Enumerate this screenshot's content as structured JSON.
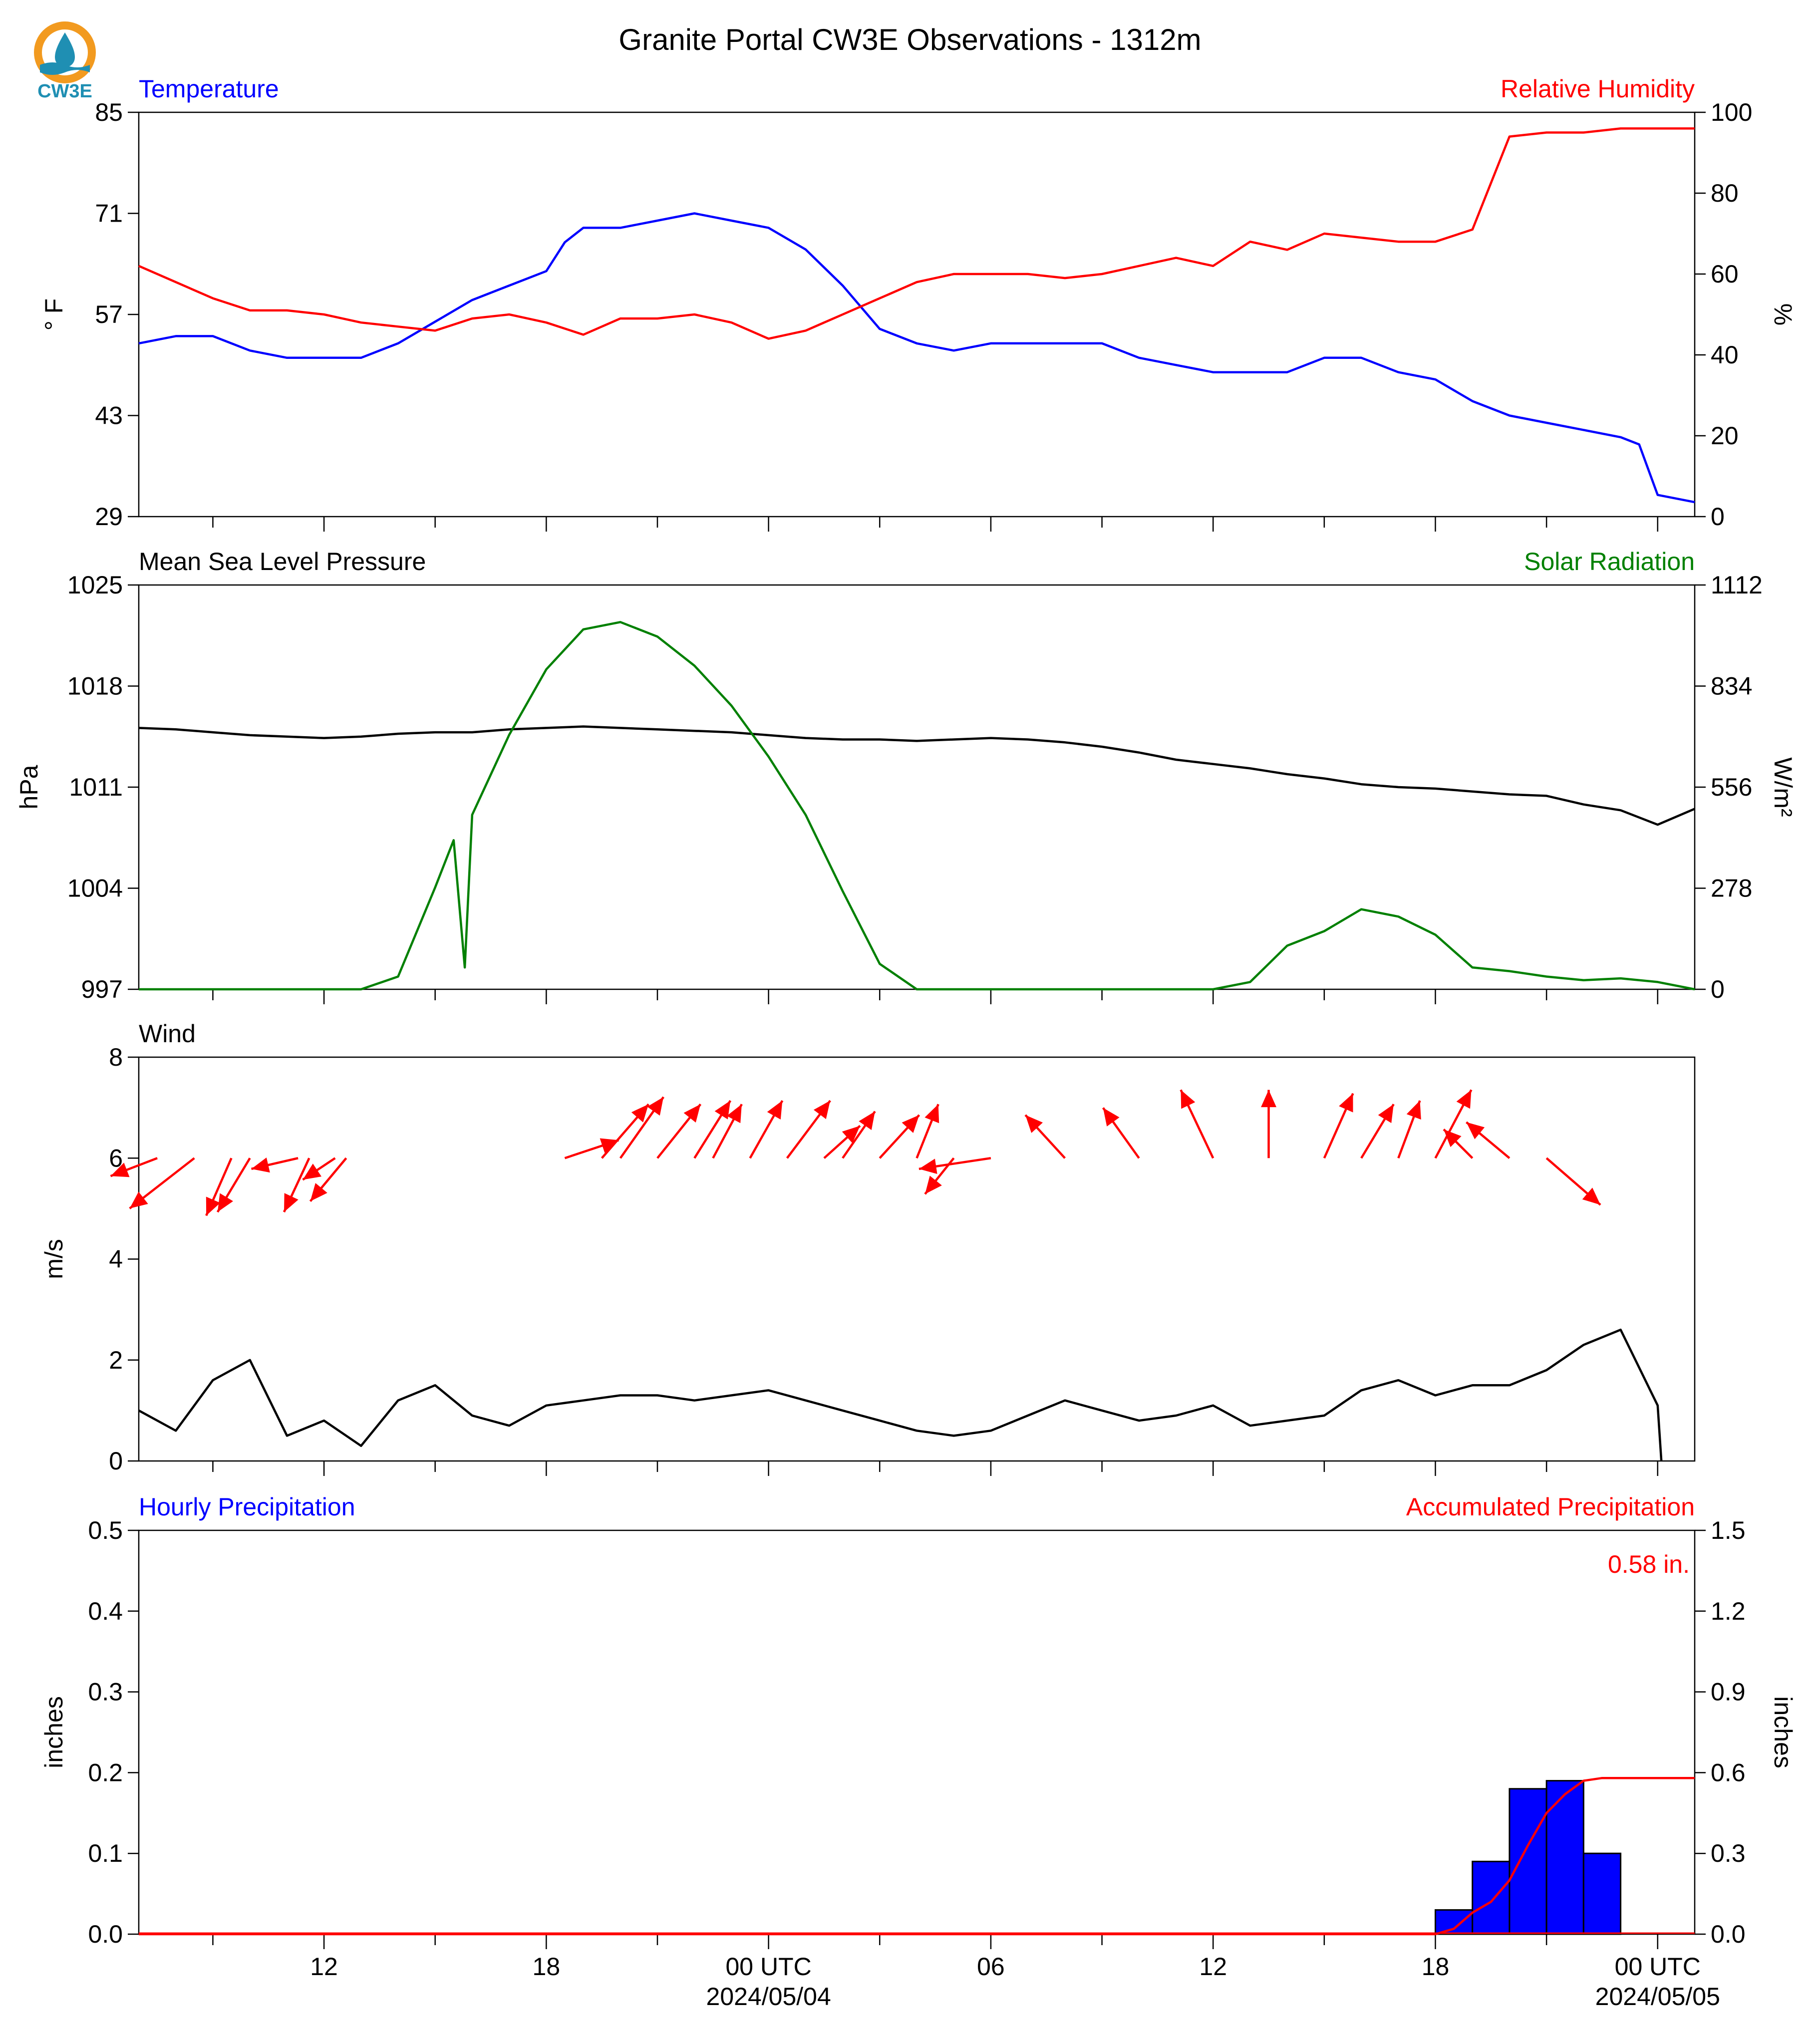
{
  "figure": {
    "title": "Granite Portal CW3E Observations - 1312m",
    "logo_text": "CW3E",
    "x_ticks": [
      {
        "hour": 12,
        "label": "12"
      },
      {
        "hour": 18,
        "label": "18"
      },
      {
        "hour": 24,
        "label": "00 UTC",
        "date": "2024/05/04"
      },
      {
        "hour": 30,
        "label": "06"
      },
      {
        "hour": 36,
        "label": "12"
      },
      {
        "hour": 42,
        "label": "18"
      },
      {
        "hour": 48,
        "label": "00 UTC",
        "date": "2024/05/05"
      }
    ],
    "x_range_hours": [
      7.0,
      49.0
    ]
  },
  "chart_data": [
    {
      "type": "line",
      "panel": "temperature-humidity",
      "left_title": "Temperature",
      "right_title": "Relative Humidity",
      "ylabel_left": "° F",
      "ylabel_right": "%",
      "ylim_left": [
        29,
        85
      ],
      "ylim_right": [
        0,
        100
      ],
      "yticks_left": [
        29,
        43,
        57,
        71,
        85
      ],
      "yticks_right": [
        0,
        20,
        40,
        60,
        80,
        100
      ],
      "colors": {
        "temperature": "#0000ff",
        "humidity": "#ff0000"
      },
      "series": [
        {
          "axis": "left",
          "x": [
            7,
            8,
            9,
            10,
            11,
            12,
            13,
            14,
            15,
            16,
            17,
            18,
            18.5,
            19,
            20,
            21,
            22,
            23,
            24,
            25,
            26,
            27,
            28,
            29,
            30,
            31,
            32,
            33,
            34,
            35,
            36,
            37,
            38,
            39,
            40,
            41,
            42,
            43,
            44,
            45,
            46,
            47,
            47.5,
            48,
            49
          ],
          "y": [
            53,
            54,
            54,
            52,
            51,
            51,
            51,
            53,
            56,
            59,
            61,
            63,
            67,
            69,
            69,
            70,
            71,
            70,
            69,
            66,
            61,
            55,
            53,
            52,
            53,
            53,
            53,
            53,
            51,
            50,
            49,
            49,
            49,
            51,
            51,
            49,
            48,
            45,
            43,
            42,
            41,
            40,
            39,
            32,
            31
          ]
        },
        {
          "axis": "right",
          "x": [
            7,
            8,
            9,
            10,
            11,
            12,
            13,
            14,
            15,
            16,
            17,
            18,
            19,
            20,
            21,
            22,
            23,
            24,
            25,
            26,
            27,
            28,
            29,
            30,
            31,
            32,
            33,
            34,
            35,
            36,
            37,
            38,
            39,
            40,
            41,
            42,
            43,
            44,
            45,
            46,
            47,
            48,
            49
          ],
          "y": [
            62,
            58,
            54,
            51,
            51,
            50,
            48,
            47,
            46,
            49,
            50,
            48,
            45,
            49,
            49,
            50,
            48,
            44,
            46,
            50,
            54,
            58,
            60,
            60,
            60,
            59,
            60,
            62,
            64,
            62,
            68,
            66,
            70,
            69,
            68,
            68,
            71,
            94,
            95,
            95,
            96,
            96,
            96
          ]
        }
      ]
    },
    {
      "type": "line",
      "panel": "pressure-solar",
      "left_title": "Mean Sea Level Pressure",
      "right_title": "Solar Radiation",
      "ylabel_left": "hPa",
      "ylabel_right": "W/m²",
      "ylim_left": [
        997,
        1025
      ],
      "ylim_right": [
        0,
        1112
      ],
      "yticks_left": [
        997,
        1004,
        1011,
        1018,
        1025
      ],
      "yticks_right": [
        0,
        278,
        556,
        834,
        1112
      ],
      "colors": {
        "pressure": "#000000",
        "solar": "#008000"
      },
      "series": [
        {
          "axis": "left",
          "x": [
            7,
            8,
            9,
            10,
            11,
            12,
            13,
            14,
            15,
            16,
            17,
            18,
            19,
            20,
            21,
            22,
            23,
            24,
            25,
            26,
            27,
            28,
            29,
            30,
            31,
            32,
            33,
            34,
            35,
            36,
            37,
            38,
            39,
            40,
            41,
            42,
            43,
            44,
            45,
            46,
            47,
            48,
            49
          ],
          "y": [
            1015.1,
            1015.0,
            1014.8,
            1014.6,
            1014.5,
            1014.4,
            1014.5,
            1014.7,
            1014.8,
            1014.8,
            1015.0,
            1015.1,
            1015.2,
            1015.1,
            1015.0,
            1014.9,
            1014.8,
            1014.6,
            1014.4,
            1014.3,
            1014.3,
            1014.2,
            1014.3,
            1014.4,
            1014.3,
            1014.1,
            1013.8,
            1013.4,
            1012.9,
            1012.6,
            1012.3,
            1011.9,
            1011.6,
            1011.2,
            1011.0,
            1010.9,
            1010.7,
            1010.5,
            1010.4,
            1009.8,
            1009.4,
            1008.4,
            1009.5
          ]
        },
        {
          "axis": "right",
          "x": [
            7,
            11,
            13,
            14,
            15,
            15.5,
            15.8,
            16,
            17,
            18,
            19,
            20,
            21,
            22,
            23,
            24,
            25,
            26,
            27,
            28,
            29,
            30,
            31,
            32,
            33,
            34,
            35,
            36,
            37,
            38,
            39,
            40,
            41,
            42,
            43,
            44,
            45,
            46,
            47,
            48,
            49
          ],
          "y": [
            0,
            0,
            0,
            35,
            280,
            410,
            60,
            480,
            700,
            880,
            990,
            1010,
            970,
            890,
            780,
            640,
            480,
            270,
            70,
            0,
            0,
            0,
            0,
            0,
            0,
            0,
            0,
            0,
            20,
            120,
            160,
            220,
            200,
            150,
            60,
            50,
            35,
            25,
            30,
            20,
            0
          ]
        }
      ]
    },
    {
      "type": "line",
      "panel": "wind",
      "left_title": "Wind",
      "ylabel_left": "m/s",
      "ylim_left": [
        0,
        8
      ],
      "yticks_left": [
        0,
        2,
        4,
        6,
        8
      ],
      "colors": {
        "speed": "#000000",
        "direction_arrows": "#ff0000"
      },
      "series": [
        {
          "axis": "left",
          "x": [
            7,
            8,
            9,
            10,
            11,
            12,
            13,
            14,
            15,
            16,
            17,
            18,
            19,
            20,
            21,
            22,
            23,
            24,
            25,
            26,
            27,
            28,
            29,
            30,
            31,
            32,
            33,
            34,
            35,
            36,
            37,
            38,
            39,
            40,
            41,
            42,
            43,
            44,
            45,
            46,
            47,
            48,
            48.1
          ],
          "y": [
            1.0,
            0.6,
            1.6,
            2.0,
            0.5,
            0.8,
            0.3,
            1.2,
            1.5,
            0.9,
            0.7,
            1.1,
            1.2,
            1.3,
            1.3,
            1.2,
            1.3,
            1.4,
            1.2,
            1.0,
            0.8,
            0.6,
            0.5,
            0.6,
            0.9,
            1.2,
            1.0,
            0.8,
            0.9,
            1.1,
            0.7,
            0.8,
            0.9,
            1.4,
            1.6,
            1.3,
            1.5,
            1.5,
            1.8,
            2.3,
            2.6,
            1.1,
            0.0
          ]
        }
      ],
      "wind_vectors": {
        "x_hours": [
          7.5,
          8.5,
          9.5,
          10.0,
          11.3,
          11.6,
          12.3,
          12.6,
          18.5,
          19.5,
          20.0,
          21.0,
          22.0,
          22.5,
          23.5,
          24.5,
          25.5,
          26.0,
          27.0,
          28.0,
          29.0,
          30.0,
          32.0,
          34.0,
          36.0,
          37.5,
          39.0,
          40.0,
          41.0,
          42.0,
          43.0,
          44.0,
          45.0
        ],
        "u": [
          -1.3,
          -1.8,
          -0.7,
          -0.9,
          -1.3,
          -0.7,
          -0.9,
          -1.0,
          1.5,
          1.3,
          1.2,
          1.2,
          1.0,
          0.8,
          0.9,
          1.2,
          1.0,
          0.9,
          1.1,
          0.6,
          -0.8,
          -2.0,
          -1.1,
          -1.0,
          -0.9,
          0.0,
          0.8,
          0.9,
          0.6,
          1.0,
          -0.8,
          -1.2,
          1.5
        ],
        "v": [
          -0.5,
          -1.4,
          -1.6,
          -1.5,
          -0.3,
          -1.5,
          -0.6,
          -1.2,
          0.5,
          1.5,
          1.7,
          1.5,
          1.6,
          1.5,
          1.6,
          1.6,
          0.9,
          1.3,
          1.2,
          1.5,
          -1.0,
          -0.3,
          1.2,
          1.4,
          1.9,
          1.9,
          1.8,
          1.5,
          1.6,
          1.9,
          0.8,
          1.0,
          -1.3
        ]
      }
    },
    {
      "type": "bar",
      "panel": "precipitation",
      "left_title": "Hourly Precipitation",
      "right_title": "Accumulated Precipitation",
      "ylabel_left": "inches",
      "ylabel_right": "inches",
      "ylim_left": [
        0,
        0.5
      ],
      "ylim_right": [
        0,
        1.5
      ],
      "yticks_left": [
        0.0,
        0.1,
        0.2,
        0.3,
        0.4,
        0.5
      ],
      "yticks_right": [
        0.0,
        0.3,
        0.6,
        0.9,
        1.2,
        1.5
      ],
      "total_label": "0.58 in.",
      "colors": {
        "bars": "#0000ff",
        "accumulated": "#ff0000"
      },
      "bars": {
        "x_start_hours": [
          42,
          43,
          44,
          45,
          46
        ],
        "values": [
          0.03,
          0.09,
          0.18,
          0.19,
          0.1
        ]
      },
      "series": [
        {
          "axis": "right",
          "x": [
            7,
            42,
            42.5,
            43,
            43.5,
            44,
            44.5,
            45,
            45.5,
            46,
            46.5,
            47,
            48,
            49
          ],
          "y": [
            0,
            0,
            0.02,
            0.08,
            0.12,
            0.2,
            0.33,
            0.45,
            0.52,
            0.57,
            0.58,
            0.58,
            0.58,
            0.58
          ]
        }
      ]
    }
  ]
}
